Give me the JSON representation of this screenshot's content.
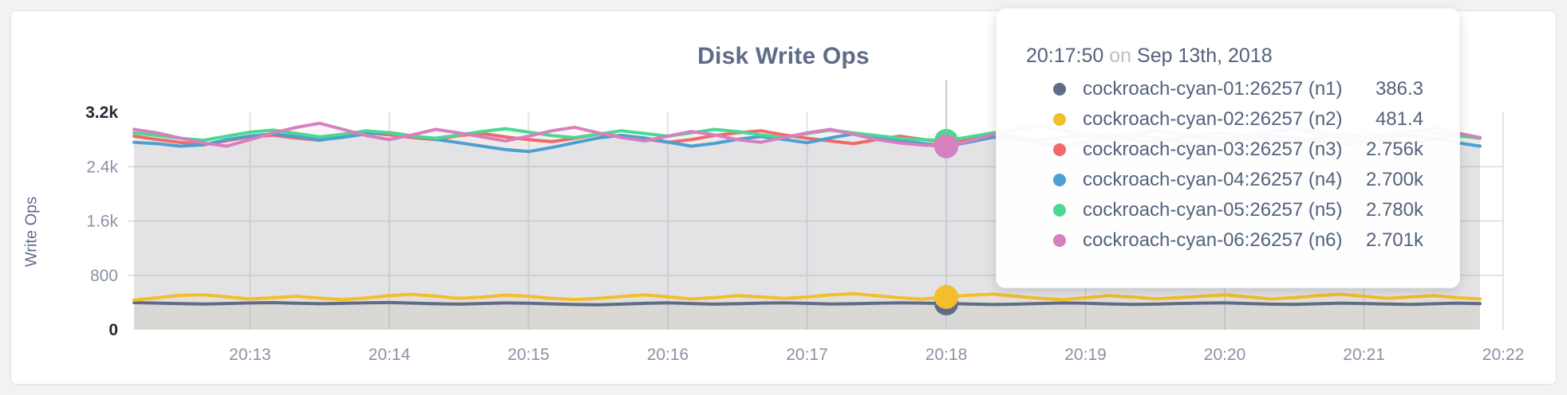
{
  "page": {
    "background": "#f2f2f0",
    "card_background": "#ffffff",
    "card_border": "#e3e3e1"
  },
  "chart": {
    "title": "Disk Write Ops",
    "ylabel": "Write Ops"
  },
  "tooltip": {
    "time": "20:17:50",
    "separator": "on",
    "date": "Sep 13th, 2018"
  },
  "chart_data": {
    "type": "line",
    "title": "Disk Write Ops",
    "xlabel": "",
    "ylabel": "Write Ops",
    "x_tick_labels": [
      "20:13",
      "20:14",
      "20:15",
      "20:16",
      "20:17",
      "20:18",
      "20:19",
      "20:20",
      "20:21",
      "20:22"
    ],
    "y_tick_values": [
      0,
      800,
      1600,
      2400,
      3200
    ],
    "y_tick_labels": [
      "0",
      "800",
      "1.6k",
      "2.4k",
      "3.2k"
    ],
    "y_gridline_values": [
      800,
      1600,
      2400
    ],
    "ylim": [
      0,
      3200
    ],
    "grid": true,
    "legend_position": "tooltip-overlay",
    "sample_interval_seconds": 10,
    "hover_index": 35,
    "hover": {
      "time": "20:17:50",
      "date": "Sep 13th, 2018"
    },
    "axis_colors": {
      "tick": "#8a92a5",
      "tick_maxmin": "#242936",
      "grid": "#e3e3e3",
      "guideline": "#c9ccd1"
    },
    "series": [
      {
        "name": "cockroach-cyan-01:26257 (n1)",
        "color": "#5f6c87",
        "hover_value": 386.3,
        "hover_label": "386.3",
        "values": [
          398,
          392,
          384,
          378,
          386,
          394,
          398,
          390,
          382,
          388,
          396,
          400,
          392,
          382,
          376,
          386,
          394,
          390,
          380,
          370,
          366,
          376,
          388,
          396,
          386,
          376,
          382,
          392,
          396,
          388,
          378,
          382,
          390,
          396,
          392,
          386.3,
          378,
          370,
          376,
          386,
          394,
          390,
          380,
          372,
          376,
          386,
          392,
          396,
          386,
          376,
          372,
          382,
          392,
          386,
          378,
          372,
          382,
          392,
          384
        ]
      },
      {
        "name": "cockroach-cyan-02:26257 (n2)",
        "color": "#f2be2c",
        "hover_value": 481.4,
        "hover_label": "481.4",
        "values": [
          436,
          470,
          506,
          514,
          484,
          452,
          470,
          492,
          464,
          442,
          468,
          500,
          522,
          494,
          462,
          480,
          510,
          492,
          462,
          444,
          462,
          490,
          512,
          484,
          452,
          472,
          502,
          484,
          460,
          482,
          512,
          532,
          502,
          470,
          450,
          481.4,
          506,
          524,
          492,
          462,
          442,
          470,
          500,
          482,
          452,
          472,
          492,
          512,
          482,
          452,
          472,
          502,
          522,
          492,
          462,
          482,
          502,
          472,
          452
        ]
      },
      {
        "name": "cockroach-cyan-03:26257 (n3)",
        "color": "#f16969",
        "hover_value": 2756,
        "hover_label": "2.756k",
        "values": [
          2848,
          2800,
          2756,
          2724,
          2782,
          2840,
          2862,
          2820,
          2788,
          2848,
          2898,
          2868,
          2828,
          2798,
          2858,
          2888,
          2838,
          2798,
          2768,
          2818,
          2878,
          2848,
          2808,
          2758,
          2798,
          2858,
          2898,
          2928,
          2868,
          2818,
          2778,
          2738,
          2798,
          2848,
          2800,
          2756,
          2820,
          2878,
          2838,
          2788,
          2828,
          2878,
          2838,
          2798,
          2758,
          2808,
          2868,
          2898,
          2848,
          2798,
          2758,
          2818,
          2878,
          2838,
          2788,
          2748,
          2798,
          2858,
          2828
        ]
      },
      {
        "name": "cockroach-cyan-04:26257 (n4)",
        "color": "#4e9fd1",
        "hover_value": 2700,
        "hover_label": "2.700k",
        "values": [
          2758,
          2738,
          2702,
          2722,
          2798,
          2852,
          2882,
          2842,
          2792,
          2832,
          2882,
          2902,
          2852,
          2802,
          2752,
          2702,
          2652,
          2622,
          2682,
          2752,
          2822,
          2862,
          2822,
          2762,
          2702,
          2742,
          2802,
          2842,
          2802,
          2752,
          2822,
          2882,
          2842,
          2782,
          2742,
          2700,
          2762,
          2832,
          2802,
          2742,
          2702,
          2762,
          2832,
          2872,
          2822,
          2762,
          2712,
          2752,
          2812,
          2862,
          2822,
          2772,
          2722,
          2762,
          2822,
          2862,
          2812,
          2752,
          2702
        ]
      },
      {
        "name": "cockroach-cyan-05:26257 (n5)",
        "color": "#49d990",
        "hover_value": 2780,
        "hover_label": "2.780k",
        "values": [
          2898,
          2858,
          2818,
          2788,
          2848,
          2908,
          2938,
          2888,
          2838,
          2878,
          2928,
          2898,
          2848,
          2818,
          2868,
          2918,
          2958,
          2908,
          2858,
          2828,
          2878,
          2928,
          2888,
          2848,
          2898,
          2948,
          2918,
          2868,
          2828,
          2888,
          2938,
          2898,
          2858,
          2818,
          2798,
          2780,
          2838,
          2898,
          2948,
          2998,
          2938,
          2878,
          2838,
          2888,
          2938,
          2898,
          2848,
          2818,
          2868,
          2928,
          2968,
          2918,
          2868,
          2828,
          2878,
          2928,
          2898,
          2858,
          2818
        ]
      },
      {
        "name": "cockroach-cyan-06:26257 (n6)",
        "color": "#d77fbf",
        "hover_value": 2701,
        "hover_label": "2.701k",
        "values": [
          2948,
          2898,
          2818,
          2748,
          2702,
          2798,
          2898,
          2978,
          3038,
          2948,
          2858,
          2798,
          2868,
          2948,
          2898,
          2838,
          2778,
          2848,
          2928,
          2978,
          2898,
          2828,
          2778,
          2848,
          2918,
          2868,
          2798,
          2758,
          2828,
          2898,
          2948,
          2878,
          2798,
          2748,
          2718,
          2701,
          2778,
          2868,
          2948,
          3018,
          2928,
          2848,
          2788,
          2848,
          2928,
          2878,
          2808,
          2758,
          2828,
          2908,
          2958,
          2888,
          2818,
          2768,
          2838,
          2918,
          2968,
          2898,
          2828
        ]
      }
    ]
  }
}
